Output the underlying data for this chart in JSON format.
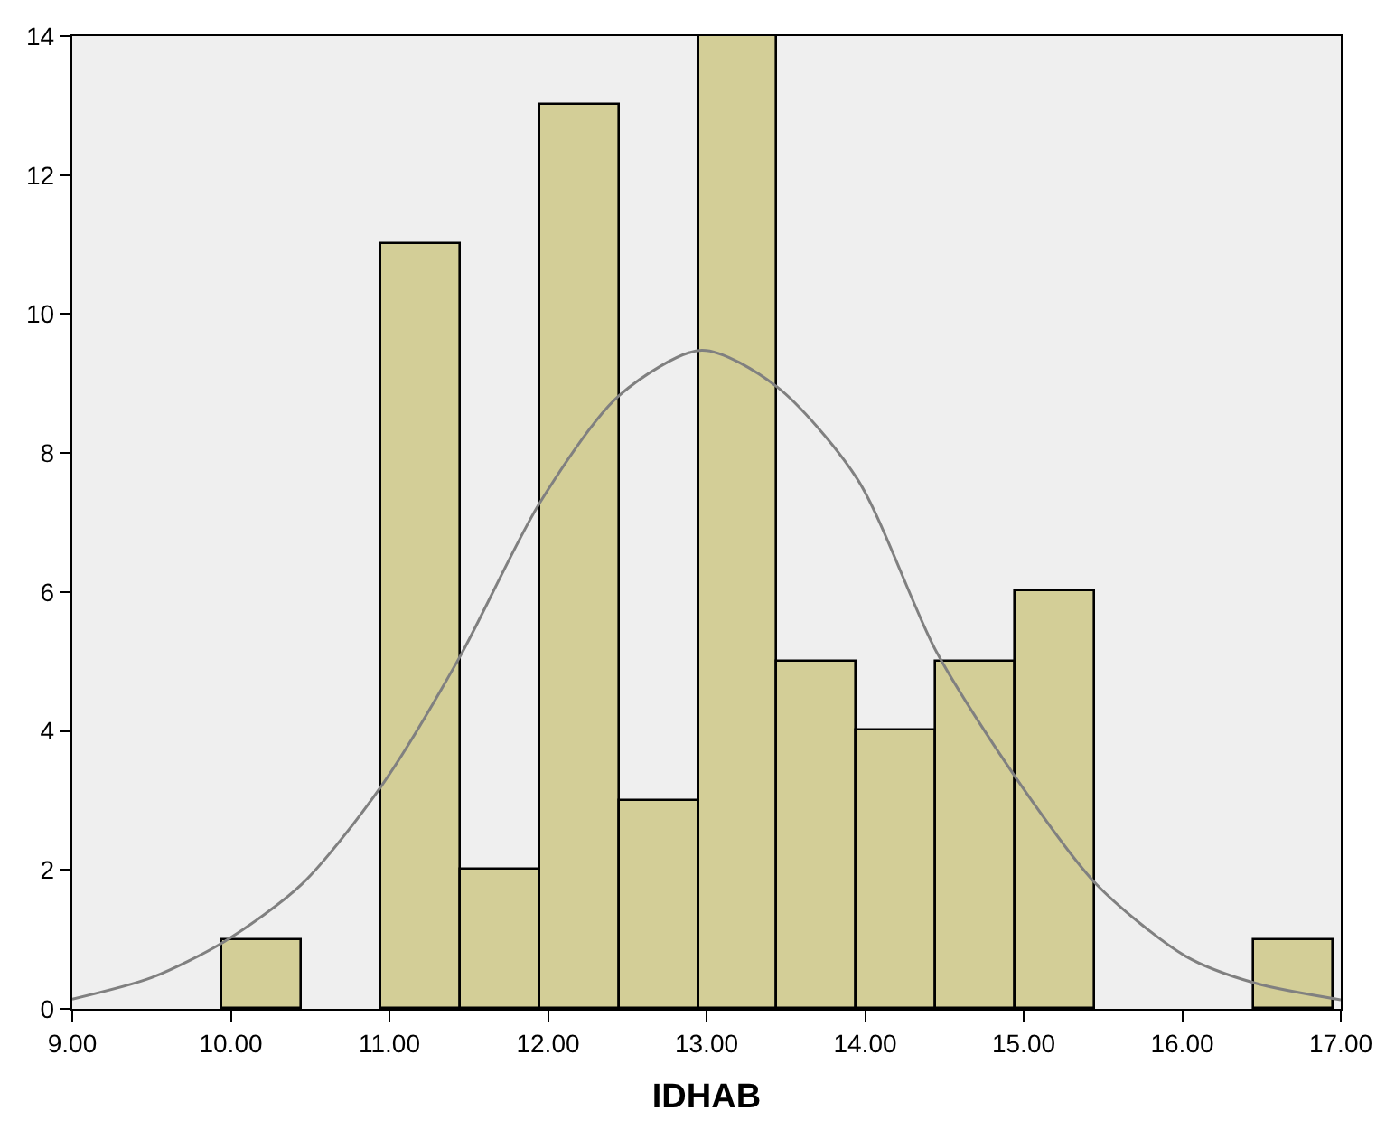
{
  "chart_data": {
    "type": "histogram",
    "xlabel": "IDHAB",
    "bins": [
      9.95,
      10.45,
      10.95,
      11.45,
      11.95,
      12.45,
      12.95,
      13.45,
      13.95,
      14.45,
      14.95,
      15.45,
      15.95,
      16.45,
      16.95
    ],
    "series": [
      {
        "type": "histogram",
        "color": "#d3ce97",
        "values": [
          1,
          0,
          11,
          2,
          13,
          3,
          14,
          5,
          4,
          5,
          6,
          0,
          0,
          1
        ]
      },
      {
        "type": "line",
        "color": "#808080",
        "marker": "none",
        "x": [
          9.0,
          9.5,
          9.96,
          10.45,
          10.95,
          11.44,
          11.95,
          12.45,
          12.97,
          13.44,
          13.95,
          14.45,
          14.95,
          15.46,
          16.02,
          16.46,
          17.0
        ],
        "values": [
          0.14,
          0.45,
          0.97,
          1.8,
          3.21,
          5.05,
          7.29,
          8.83,
          9.48,
          8.96,
          7.63,
          5.14,
          3.33,
          1.79,
          0.76,
          0.37,
          0.13
        ]
      }
    ],
    "xlim": [
      9,
      17
    ],
    "ylim": [
      0,
      14
    ],
    "xticks": [
      {
        "value": 9,
        "label": "9.00"
      },
      {
        "value": 10,
        "label": "10.00"
      },
      {
        "value": 11,
        "label": "11.00"
      },
      {
        "value": 12,
        "label": "12.00"
      },
      {
        "value": 13,
        "label": "13.00"
      },
      {
        "value": 14,
        "label": "14.00"
      },
      {
        "value": 15,
        "label": "15.00"
      },
      {
        "value": 16,
        "label": "16.00"
      },
      {
        "value": 17,
        "label": "17.00"
      }
    ],
    "yticks": [
      0,
      2,
      4,
      6,
      8,
      10,
      12,
      14
    ],
    "grid": false
  }
}
